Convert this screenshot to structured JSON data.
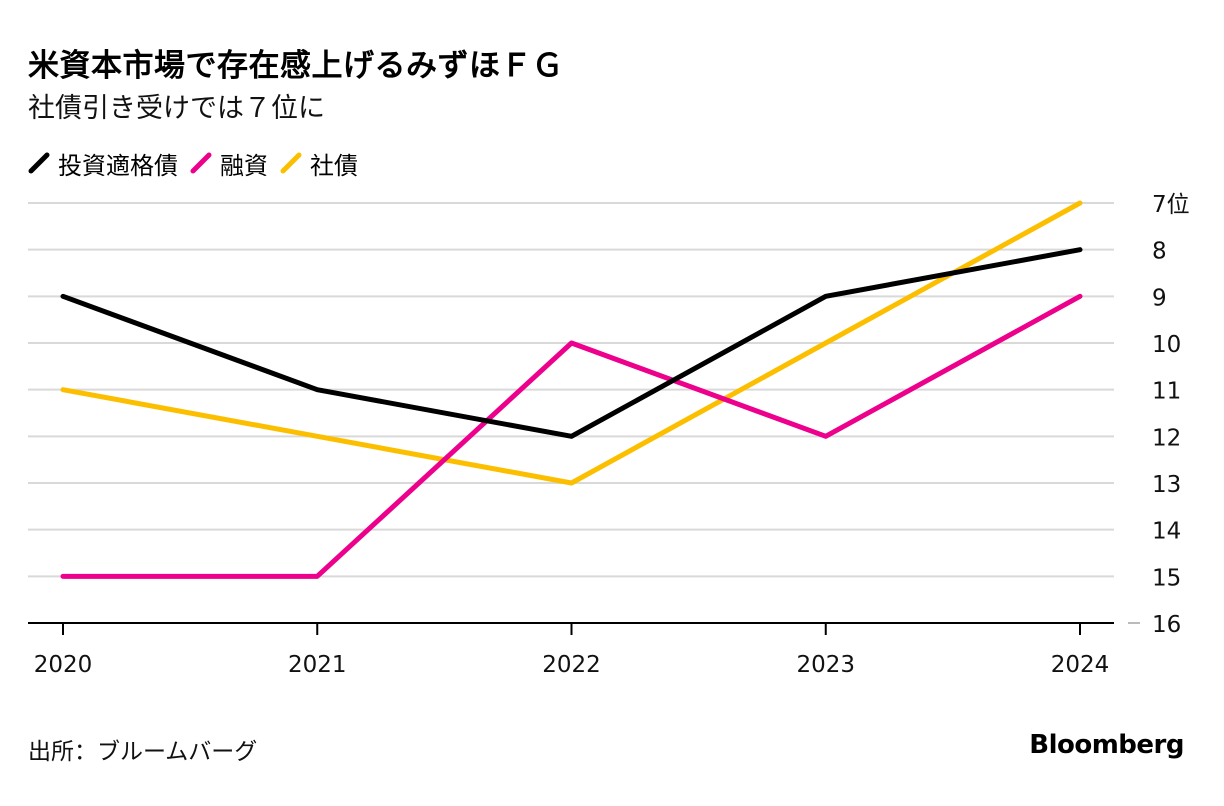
{
  "title": "米資本市場で存在感上げるみずほＦＧ",
  "subtitle": "社債引き受けでは７位に",
  "source": "出所：ブルームバーグ",
  "logo": "Bloomberg",
  "legend": [
    {
      "label": "投資適格債",
      "color": "#000000"
    },
    {
      "label": "融資",
      "color": "#ec008c"
    },
    {
      "label": "社債",
      "color": "#fcbf00"
    }
  ],
  "chart_data": {
    "type": "line",
    "title": "米資本市場で存在感上げるみずほＦＧ",
    "subtitle": "社債引き受けでは７位に",
    "xlabel": "",
    "ylabel": "",
    "x": [
      "2020",
      "2021",
      "2022",
      "2023",
      "2024"
    ],
    "y_inverted": true,
    "ylim": [
      7,
      16
    ],
    "y_ticks": [
      7,
      8,
      9,
      10,
      11,
      12,
      13,
      14,
      15,
      16
    ],
    "y_tick_labels": [
      "7位",
      "8",
      "9",
      "10",
      "11",
      "12",
      "13",
      "14",
      "15",
      "16"
    ],
    "series": [
      {
        "name": "投資適格債",
        "color": "#000000",
        "values": [
          9,
          11,
          12,
          9,
          8
        ]
      },
      {
        "name": "融資",
        "color": "#ec008c",
        "values": [
          15,
          15,
          10,
          12,
          9
        ]
      },
      {
        "name": "社債",
        "color": "#fcbf00",
        "values": [
          11,
          12,
          13,
          10,
          7
        ]
      }
    ],
    "grid": true,
    "legend_position": "top-left"
  }
}
